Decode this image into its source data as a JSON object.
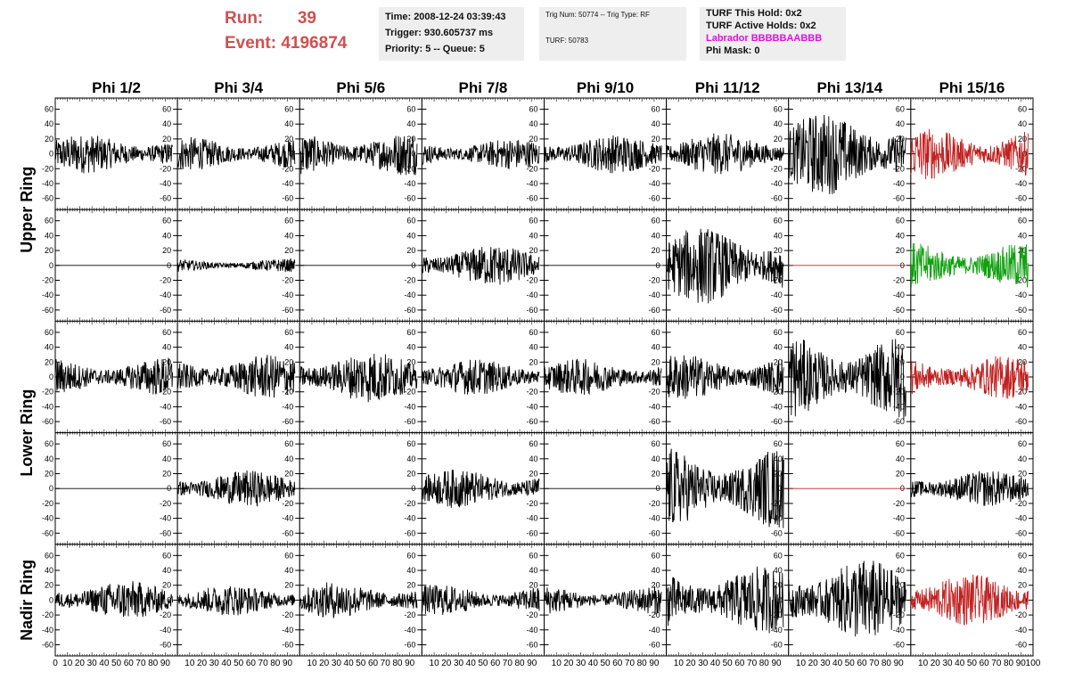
{
  "header": {
    "run_label": "Run:",
    "run_value": "39",
    "event_label": "Event:",
    "event_value": "4196874",
    "time": "Time: 2008-12-24 03:39:43",
    "trigger": "Trigger: 930.605737 ms",
    "priority": "Priority: 5 -- Queue: 5",
    "trig_num": "Trig Num: 50774 -- Trig Type: RF",
    "turf": "TURF: 50783",
    "turf_this_hold": "TURF This Hold: 0x2",
    "turf_active_holds": "TURF Active Holds: 0x2",
    "labrador": "Labrador BBBBBAABBB",
    "phi_mask": "Phi Mask: 0"
  },
  "colors": {
    "run_text": "#d05050",
    "labrador_text": "#e010e0",
    "trace_black": "#000000",
    "trace_red": "#c02020",
    "trace_green": "#10a010",
    "info_bg": "#eeeeee"
  },
  "chart_data": {
    "type": "line",
    "columns": [
      "Phi 1/2",
      "Phi 3/4",
      "Phi 5/6",
      "Phi 7/8",
      "Phi 9/10",
      "Phi 11/12",
      "Phi 13/14",
      "Phi 15/16"
    ],
    "ring_labels": [
      {
        "name": "Upper Ring",
        "rows": [
          0,
          1
        ]
      },
      {
        "name": "Lower Ring",
        "rows": [
          2,
          3
        ]
      },
      {
        "name": "Nadir Ring",
        "rows": [
          4
        ]
      }
    ],
    "ylim": [
      -75,
      75
    ],
    "yticks": [
      -60,
      -40,
      -20,
      0,
      20,
      40,
      60
    ],
    "xlim": [
      0,
      100
    ],
    "xticks": [
      0,
      10,
      20,
      30,
      40,
      50,
      60,
      70,
      80,
      90,
      100
    ],
    "traces": [
      [
        {
          "amp": 15,
          "color": "#000000"
        },
        {
          "amp": 13,
          "color": "#000000"
        },
        {
          "amp": 17,
          "color": "#000000"
        },
        {
          "amp": 12,
          "color": "#000000"
        },
        {
          "amp": 15,
          "color": "#000000"
        },
        {
          "amp": 16,
          "color": "#000000"
        },
        {
          "amp": 32,
          "color": "#000000"
        },
        {
          "amp": 20,
          "color": "#c02020"
        }
      ],
      [
        {
          "amp": 0,
          "color": "#000000"
        },
        {
          "amp": 5,
          "color": "#000000"
        },
        {
          "amp": 0,
          "color": "#000000"
        },
        {
          "amp": 16,
          "color": "#000000"
        },
        {
          "amp": 0,
          "color": "#000000"
        },
        {
          "amp": 30,
          "color": "#000000"
        },
        {
          "amp": 0,
          "color": "#c02020"
        },
        {
          "amp": 18,
          "color": "#10a010"
        }
      ],
      [
        {
          "amp": 15,
          "color": "#000000"
        },
        {
          "amp": 17,
          "color": "#000000"
        },
        {
          "amp": 20,
          "color": "#000000"
        },
        {
          "amp": 14,
          "color": "#000000"
        },
        {
          "amp": 14,
          "color": "#000000"
        },
        {
          "amp": 18,
          "color": "#000000"
        },
        {
          "amp": 33,
          "color": "#000000"
        },
        {
          "amp": 17,
          "color": "#c02020"
        }
      ],
      [
        {
          "amp": 0,
          "color": "#000000"
        },
        {
          "amp": 14,
          "color": "#000000"
        },
        {
          "amp": 0,
          "color": "#000000"
        },
        {
          "amp": 15,
          "color": "#000000"
        },
        {
          "amp": 0,
          "color": "#000000"
        },
        {
          "amp": 32,
          "color": "#000000"
        },
        {
          "amp": 0,
          "color": "#c02020"
        },
        {
          "amp": 14,
          "color": "#000000"
        }
      ],
      [
        {
          "amp": 15,
          "color": "#000000"
        },
        {
          "amp": 12,
          "color": "#000000"
        },
        {
          "amp": 14,
          "color": "#000000"
        },
        {
          "amp": 12,
          "color": "#000000"
        },
        {
          "amp": 11,
          "color": "#000000"
        },
        {
          "amp": 26,
          "color": "#000000"
        },
        {
          "amp": 32,
          "color": "#000000"
        },
        {
          "amp": 20,
          "color": "#c02020"
        }
      ]
    ]
  }
}
